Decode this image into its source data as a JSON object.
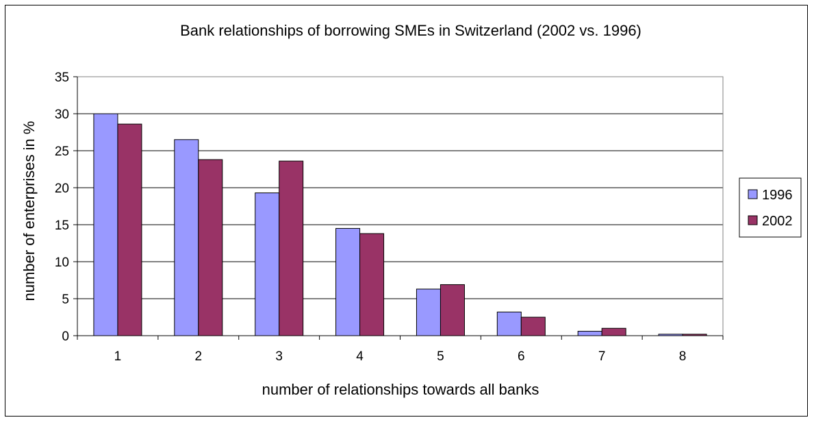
{
  "chart_data": {
    "type": "bar",
    "title": "Bank relationships of borrowing SMEs in Switzerland (2002 vs. 1996)",
    "xlabel": "number of relationships towards all banks",
    "ylabel": "number of enterprises in %",
    "categories": [
      "1",
      "2",
      "3",
      "4",
      "5",
      "6",
      "7",
      "8"
    ],
    "series": [
      {
        "name": "1996",
        "color": "#9999ff",
        "values": [
          30.0,
          26.5,
          19.3,
          14.5,
          6.3,
          3.2,
          0.6,
          0.2
        ]
      },
      {
        "name": "2002",
        "color": "#993366",
        "values": [
          28.6,
          23.8,
          23.6,
          13.8,
          6.9,
          2.5,
          1.0,
          0.2
        ]
      }
    ],
    "ylim": [
      0,
      35
    ],
    "yticks": [
      "0",
      "5",
      "10",
      "15",
      "20",
      "25",
      "30",
      "35"
    ],
    "grid": true,
    "legend_position": "right"
  }
}
